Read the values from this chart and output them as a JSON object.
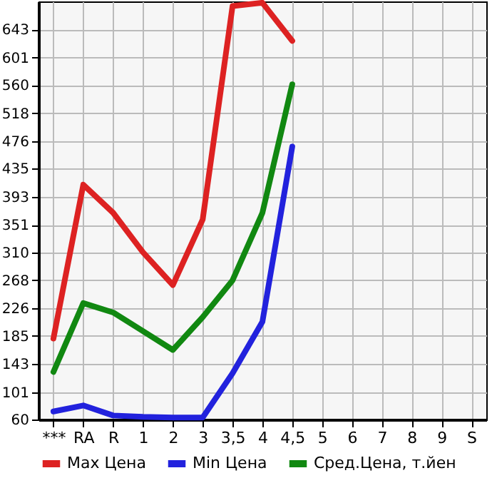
{
  "chart_data": {
    "type": "line",
    "categories": [
      "***",
      "RA",
      "R",
      "1",
      "2",
      "3",
      "3,5",
      "4",
      "4,5",
      "5",
      "6",
      "7",
      "8",
      "9",
      "S"
    ],
    "series": [
      {
        "name": "Max Цена",
        "color": "#dd2222",
        "values": [
          181,
          411,
          369,
          310,
          261,
          359,
          678,
          683,
          626,
          null,
          null,
          null,
          null,
          null,
          null
        ]
      },
      {
        "name": "Min Цена",
        "color": "#2222dd",
        "values": [
          72,
          81,
          66,
          64,
          63,
          63,
          129,
          206,
          468,
          null,
          null,
          null,
          null,
          null,
          null
        ]
      },
      {
        "name": "Сред.Цена, т.йен",
        "color": "#118811",
        "values": [
          131,
          234,
          220,
          192,
          164,
          213,
          268,
          369,
          561,
          null,
          null,
          null,
          null,
          null,
          null
        ]
      }
    ],
    "ylim": [
      60,
      685
    ],
    "yticks": [
      60,
      101,
      143,
      185,
      226,
      268,
      310,
      351,
      393,
      435,
      476,
      518,
      560,
      601,
      643
    ],
    "grid": true,
    "legend": "bottom",
    "marker": "none",
    "line_style": "solid"
  }
}
